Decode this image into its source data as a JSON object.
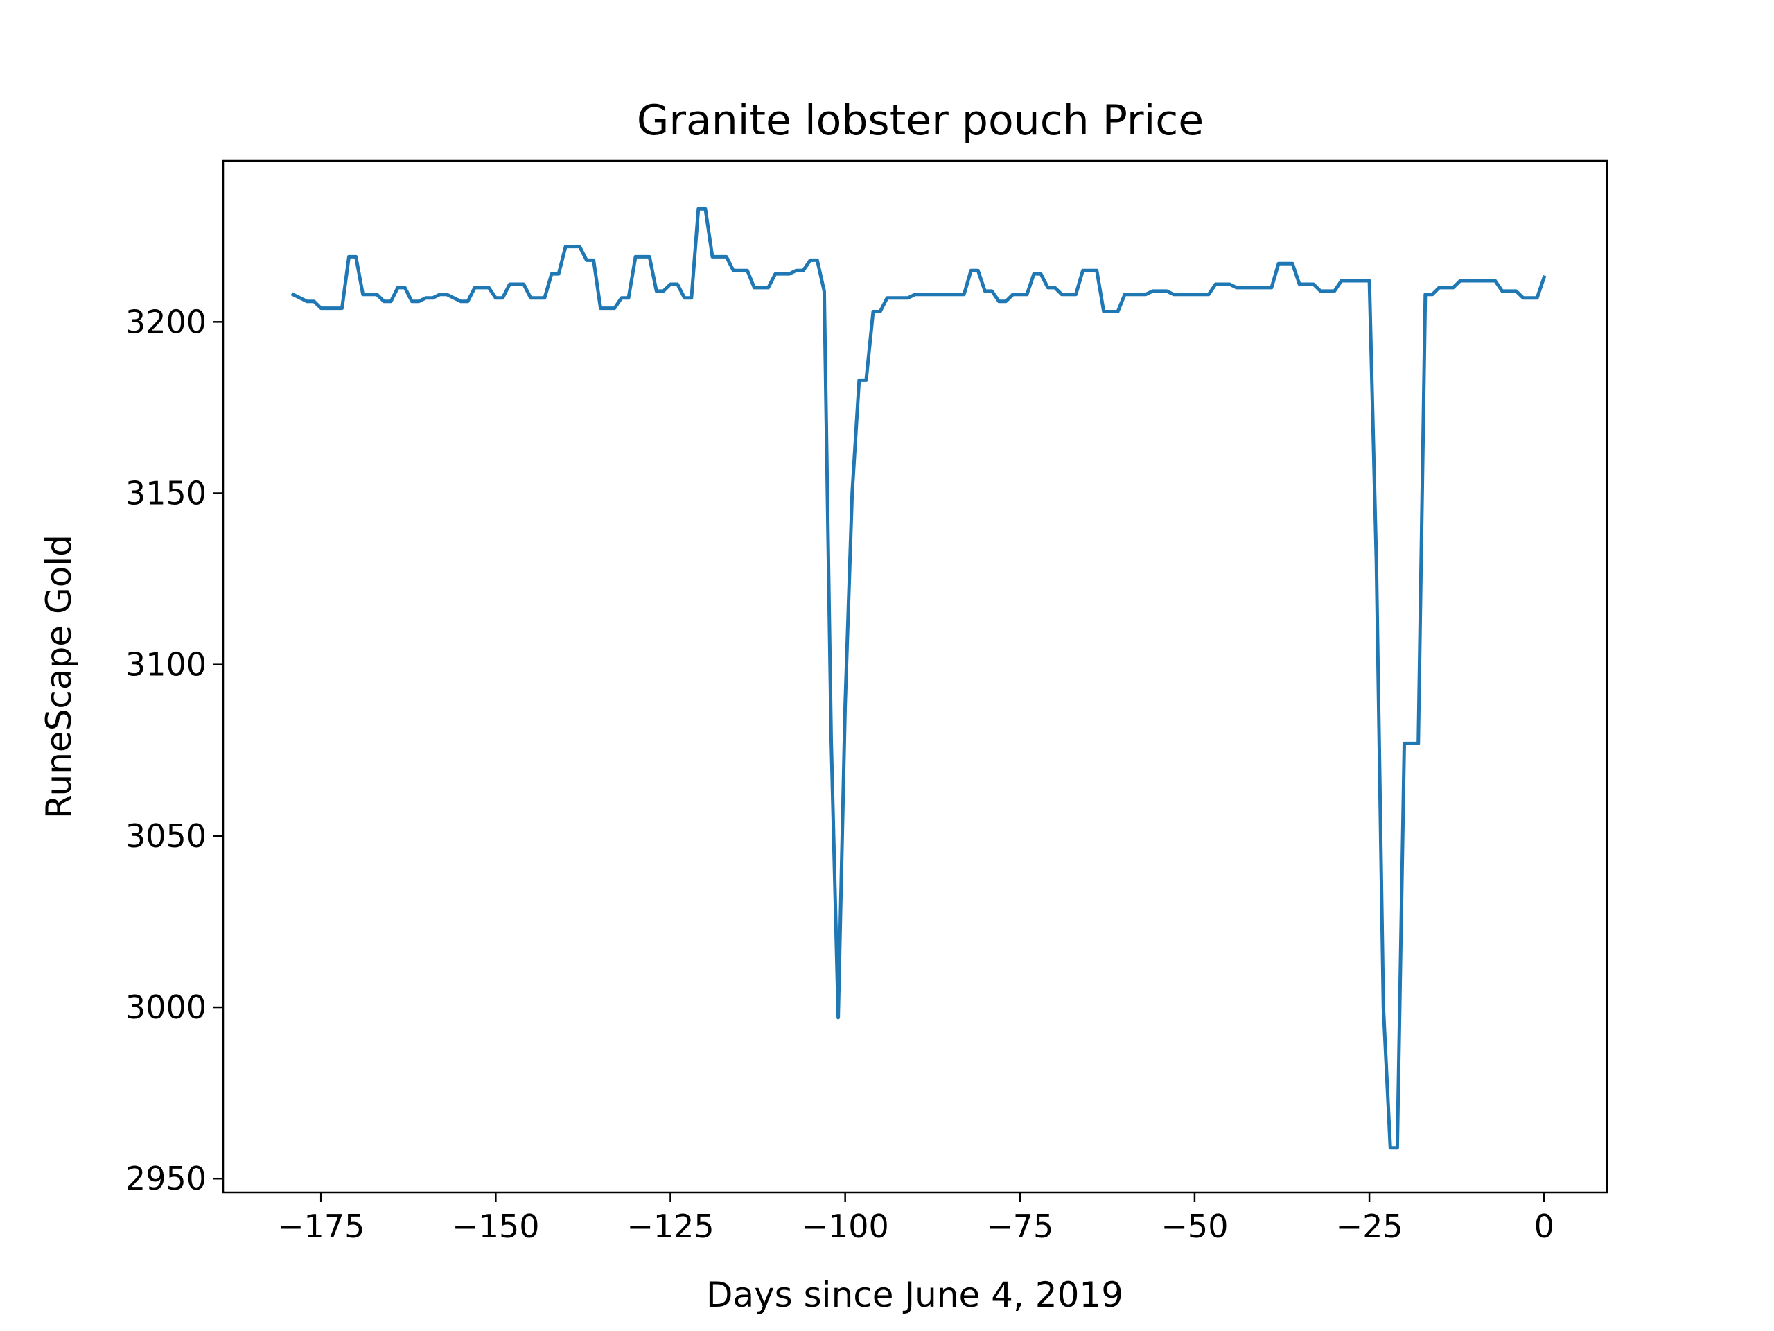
{
  "chart_data": {
    "type": "line",
    "title": "Granite lobster pouch Price",
    "xlabel": "Days since June 4, 2019",
    "ylabel": "RuneScape Gold",
    "xlim": [
      -189,
      9
    ],
    "ylim": [
      2946,
      3247
    ],
    "x_ticks": [
      -175,
      -150,
      -125,
      -100,
      -75,
      -50,
      -25,
      0
    ],
    "x_tick_labels": [
      "−175",
      "−150",
      "−125",
      "−100",
      "−75",
      "−50",
      "−25",
      "0"
    ],
    "y_ticks": [
      2950,
      3000,
      3050,
      3100,
      3150,
      3200
    ],
    "y_tick_labels": [
      "2950",
      "3000",
      "3050",
      "3100",
      "3150",
      "3200"
    ],
    "grid": false,
    "legend": "none",
    "series": [
      {
        "color": "#1f77b4",
        "points": [
          [
            -179,
            3208
          ],
          [
            -178,
            3207
          ],
          [
            -177,
            3206
          ],
          [
            -176,
            3206
          ],
          [
            -175,
            3204
          ],
          [
            -174,
            3204
          ],
          [
            -173,
            3204
          ],
          [
            -172,
            3204
          ],
          [
            -171,
            3219
          ],
          [
            -170,
            3219
          ],
          [
            -169,
            3208
          ],
          [
            -168,
            3208
          ],
          [
            -167,
            3208
          ],
          [
            -166,
            3206
          ],
          [
            -165,
            3206
          ],
          [
            -164,
            3210
          ],
          [
            -163,
            3210
          ],
          [
            -162,
            3206
          ],
          [
            -161,
            3206
          ],
          [
            -160,
            3207
          ],
          [
            -159,
            3207
          ],
          [
            -158,
            3208
          ],
          [
            -157,
            3208
          ],
          [
            -156,
            3207
          ],
          [
            -155,
            3206
          ],
          [
            -154,
            3206
          ],
          [
            -153,
            3210
          ],
          [
            -152,
            3210
          ],
          [
            -151,
            3210
          ],
          [
            -150,
            3207
          ],
          [
            -149,
            3207
          ],
          [
            -148,
            3211
          ],
          [
            -147,
            3211
          ],
          [
            -146,
            3211
          ],
          [
            -145,
            3207
          ],
          [
            -144,
            3207
          ],
          [
            -143,
            3207
          ],
          [
            -142,
            3214
          ],
          [
            -141,
            3214
          ],
          [
            -140,
            3222
          ],
          [
            -139,
            3222
          ],
          [
            -138,
            3222
          ],
          [
            -137,
            3218
          ],
          [
            -136,
            3218
          ],
          [
            -135,
            3204
          ],
          [
            -134,
            3204
          ],
          [
            -133,
            3204
          ],
          [
            -132,
            3207
          ],
          [
            -131,
            3207
          ],
          [
            -130,
            3219
          ],
          [
            -129,
            3219
          ],
          [
            -128,
            3219
          ],
          [
            -127,
            3209
          ],
          [
            -126,
            3209
          ],
          [
            -125,
            3211
          ],
          [
            -124,
            3211
          ],
          [
            -123,
            3207
          ],
          [
            -122,
            3207
          ],
          [
            -121,
            3233
          ],
          [
            -120,
            3233
          ],
          [
            -119,
            3219
          ],
          [
            -118,
            3219
          ],
          [
            -117,
            3219
          ],
          [
            -116,
            3215
          ],
          [
            -115,
            3215
          ],
          [
            -114,
            3215
          ],
          [
            -113,
            3210
          ],
          [
            -112,
            3210
          ],
          [
            -111,
            3210
          ],
          [
            -110,
            3214
          ],
          [
            -109,
            3214
          ],
          [
            -108,
            3214
          ],
          [
            -107,
            3215
          ],
          [
            -106,
            3215
          ],
          [
            -105,
            3218
          ],
          [
            -104,
            3218
          ],
          [
            -103,
            3209
          ],
          [
            -102,
            3078
          ],
          [
            -101,
            2997
          ],
          [
            -100,
            3088
          ],
          [
            -99,
            3150
          ],
          [
            -98,
            3183
          ],
          [
            -97,
            3183
          ],
          [
            -96,
            3203
          ],
          [
            -95,
            3203
          ],
          [
            -94,
            3207
          ],
          [
            -93,
            3207
          ],
          [
            -92,
            3207
          ],
          [
            -91,
            3207
          ],
          [
            -90,
            3208
          ],
          [
            -89,
            3208
          ],
          [
            -88,
            3208
          ],
          [
            -87,
            3208
          ],
          [
            -86,
            3208
          ],
          [
            -85,
            3208
          ],
          [
            -84,
            3208
          ],
          [
            -83,
            3208
          ],
          [
            -82,
            3215
          ],
          [
            -81,
            3215
          ],
          [
            -80,
            3209
          ],
          [
            -79,
            3209
          ],
          [
            -78,
            3206
          ],
          [
            -77,
            3206
          ],
          [
            -76,
            3208
          ],
          [
            -75,
            3208
          ],
          [
            -74,
            3208
          ],
          [
            -73,
            3214
          ],
          [
            -72,
            3214
          ],
          [
            -71,
            3210
          ],
          [
            -70,
            3210
          ],
          [
            -69,
            3208
          ],
          [
            -68,
            3208
          ],
          [
            -67,
            3208
          ],
          [
            -66,
            3215
          ],
          [
            -65,
            3215
          ],
          [
            -64,
            3215
          ],
          [
            -63,
            3203
          ],
          [
            -62,
            3203
          ],
          [
            -61,
            3203
          ],
          [
            -60,
            3208
          ],
          [
            -59,
            3208
          ],
          [
            -58,
            3208
          ],
          [
            -57,
            3208
          ],
          [
            -56,
            3209
          ],
          [
            -55,
            3209
          ],
          [
            -54,
            3209
          ],
          [
            -53,
            3208
          ],
          [
            -52,
            3208
          ],
          [
            -51,
            3208
          ],
          [
            -50,
            3208
          ],
          [
            -49,
            3208
          ],
          [
            -48,
            3208
          ],
          [
            -47,
            3211
          ],
          [
            -46,
            3211
          ],
          [
            -45,
            3211
          ],
          [
            -44,
            3210
          ],
          [
            -43,
            3210
          ],
          [
            -42,
            3210
          ],
          [
            -41,
            3210
          ],
          [
            -40,
            3210
          ],
          [
            -39,
            3210
          ],
          [
            -38,
            3217
          ],
          [
            -37,
            3217
          ],
          [
            -36,
            3217
          ],
          [
            -35,
            3211
          ],
          [
            -34,
            3211
          ],
          [
            -33,
            3211
          ],
          [
            -32,
            3209
          ],
          [
            -31,
            3209
          ],
          [
            -30,
            3209
          ],
          [
            -29,
            3212
          ],
          [
            -28,
            3212
          ],
          [
            -27,
            3212
          ],
          [
            -26,
            3212
          ],
          [
            -25,
            3212
          ],
          [
            -24,
            3130
          ],
          [
            -23,
            3000
          ],
          [
            -22,
            2959
          ],
          [
            -21,
            2959
          ],
          [
            -20,
            3077
          ],
          [
            -19,
            3077
          ],
          [
            -18,
            3077
          ],
          [
            -17,
            3208
          ],
          [
            -16,
            3208
          ],
          [
            -15,
            3210
          ],
          [
            -14,
            3210
          ],
          [
            -13,
            3210
          ],
          [
            -12,
            3212
          ],
          [
            -11,
            3212
          ],
          [
            -10,
            3212
          ],
          [
            -9,
            3212
          ],
          [
            -8,
            3212
          ],
          [
            -7,
            3212
          ],
          [
            -6,
            3209
          ],
          [
            -5,
            3209
          ],
          [
            -4,
            3209
          ],
          [
            -3,
            3207
          ],
          [
            -2,
            3207
          ],
          [
            -1,
            3207
          ],
          [
            0,
            3213
          ]
        ]
      }
    ]
  }
}
